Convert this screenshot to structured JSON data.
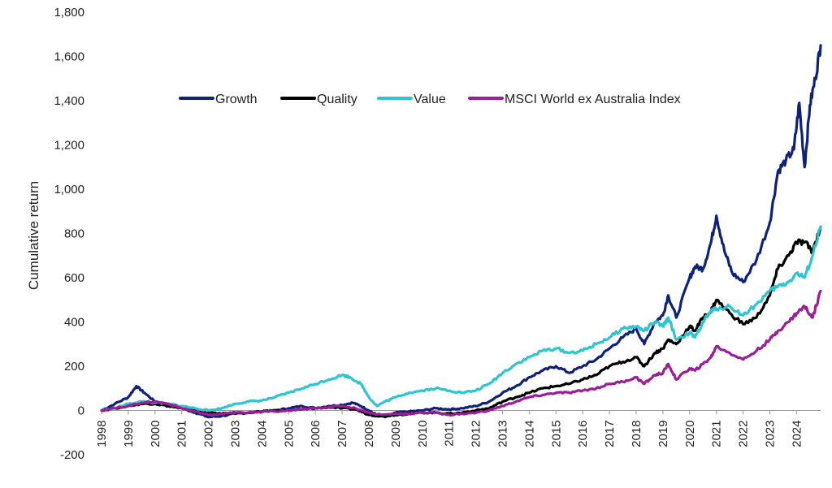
{
  "chart_data": {
    "type": "line",
    "title": "",
    "xlabel": "",
    "ylabel": "Cumulative return",
    "xlim": [
      1998,
      2024.9
    ],
    "ylim": [
      -200,
      1800
    ],
    "y_ticks": [
      -200,
      0,
      200,
      400,
      600,
      800,
      1000,
      1200,
      1400,
      1600,
      1800
    ],
    "y_tick_labels": [
      "-200",
      "0",
      "200",
      "400",
      "600",
      "800",
      "1,000",
      "1,200",
      "1,400",
      "1,600",
      "1,800"
    ],
    "x_ticks": [
      "1998",
      "1999",
      "2000",
      "2001",
      "2002",
      "2003",
      "2004",
      "2005",
      "2006",
      "2007",
      "2008",
      "2009",
      "2010",
      "2011",
      "2012",
      "2013",
      "2014",
      "2015",
      "2016",
      "2017",
      "2018",
      "2019",
      "2020",
      "2021",
      "2022",
      "2023",
      "2024"
    ],
    "grid": false,
    "legend_position": "top-center",
    "series": [
      {
        "name": "Growth",
        "color": "#0f2278",
        "x": [
          1998,
          1998.5,
          1999,
          1999.3,
          1999.6,
          2000,
          2000.5,
          2001,
          2001.5,
          2002,
          2002.5,
          2003,
          2003.5,
          2004,
          2004.5,
          2005,
          2005.5,
          2006,
          2006.5,
          2007,
          2007.4,
          2007.7,
          2008,
          2008.3,
          2008.6,
          2009,
          2009.5,
          2010,
          2010.5,
          2011,
          2011.5,
          2012,
          2012.5,
          2013,
          2013.5,
          2014,
          2014.5,
          2015,
          2015.5,
          2016,
          2016.5,
          2017,
          2017.5,
          2018,
          2018.3,
          2018.7,
          2019,
          2019.2,
          2019.5,
          2020,
          2020.2,
          2020.5,
          2020.8,
          2021,
          2021.3,
          2021.6,
          2022,
          2022.5,
          2023,
          2023.3,
          2023.6,
          2023.9,
          2024.1,
          2024.3,
          2024.5,
          2024.7,
          2024.9
        ],
        "values": [
          0,
          30,
          60,
          110,
          80,
          40,
          20,
          10,
          -10,
          -30,
          -25,
          -15,
          -10,
          -5,
          0,
          10,
          20,
          10,
          20,
          25,
          35,
          20,
          0,
          -20,
          -30,
          -10,
          -5,
          0,
          10,
          5,
          10,
          20,
          40,
          80,
          110,
          150,
          180,
          200,
          170,
          200,
          230,
          280,
          330,
          370,
          300,
          400,
          430,
          520,
          420,
          600,
          650,
          640,
          760,
          880,
          720,
          620,
          580,
          680,
          850,
          1080,
          1130,
          1180,
          1390,
          1100,
          1380,
          1500,
          1650
        ]
      },
      {
        "name": "Quality",
        "color": "#000000",
        "x": [
          1998,
          1998.5,
          1999,
          1999.5,
          2000,
          2000.5,
          2001,
          2001.5,
          2002,
          2002.5,
          2003,
          2003.5,
          2004,
          2004.5,
          2005,
          2005.5,
          2006,
          2006.5,
          2007,
          2007.5,
          2008,
          2008.5,
          2009,
          2009.5,
          2010,
          2010.5,
          2011,
          2011.5,
          2012,
          2012.5,
          2013,
          2013.5,
          2014,
          2014.5,
          2015,
          2015.5,
          2016,
          2016.5,
          2017,
          2017.5,
          2018,
          2018.3,
          2018.7,
          2019,
          2019.2,
          2019.5,
          2020,
          2020.2,
          2020.5,
          2020.8,
          2021,
          2021.5,
          2022,
          2022.5,
          2023,
          2023.3,
          2023.7,
          2024,
          2024.3,
          2024.6,
          2024.9
        ],
        "values": [
          0,
          10,
          20,
          30,
          30,
          20,
          10,
          0,
          -10,
          -15,
          -10,
          -10,
          -5,
          0,
          0,
          5,
          10,
          15,
          10,
          5,
          -20,
          -25,
          -20,
          -15,
          -10,
          -10,
          -15,
          -10,
          0,
          10,
          40,
          60,
          80,
          100,
          110,
          120,
          140,
          160,
          200,
          220,
          240,
          200,
          260,
          280,
          320,
          300,
          380,
          360,
          420,
          450,
          500,
          440,
          390,
          420,
          520,
          640,
          700,
          760,
          760,
          720,
          830
        ]
      },
      {
        "name": "Value",
        "color": "#2ec4d0",
        "x": [
          1998,
          1998.5,
          1999,
          1999.5,
          2000,
          2000.5,
          2001,
          2001.5,
          2002,
          2002.5,
          2003,
          2003.5,
          2004,
          2004.5,
          2005,
          2005.5,
          2006,
          2006.5,
          2007,
          2007.3,
          2007.7,
          2008,
          2008.3,
          2008.6,
          2009,
          2009.5,
          2010,
          2010.5,
          2011,
          2011.5,
          2012,
          2012.5,
          2013,
          2013.5,
          2014,
          2014.5,
          2015,
          2015.5,
          2016,
          2016.5,
          2017,
          2017.5,
          2018,
          2018.3,
          2018.7,
          2019,
          2019.2,
          2019.5,
          2020,
          2020.2,
          2020.5,
          2020.8,
          2021,
          2021.5,
          2022,
          2022.5,
          2023,
          2023.3,
          2023.7,
          2024,
          2024.3,
          2024.6,
          2024.9
        ],
        "values": [
          0,
          10,
          30,
          40,
          35,
          30,
          20,
          10,
          0,
          10,
          30,
          40,
          45,
          60,
          80,
          100,
          120,
          140,
          160,
          150,
          120,
          60,
          20,
          40,
          60,
          80,
          90,
          100,
          90,
          80,
          90,
          120,
          170,
          210,
          240,
          270,
          280,
          260,
          270,
          300,
          330,
          370,
          380,
          360,
          400,
          380,
          420,
          320,
          350,
          330,
          400,
          450,
          460,
          470,
          430,
          480,
          540,
          560,
          580,
          620,
          600,
          700,
          830
        ]
      },
      {
        "name": "MSCI World ex Australia Index",
        "color": "#9a1f96",
        "x": [
          1998,
          1998.5,
          1999,
          1999.5,
          2000,
          2000.5,
          2001,
          2001.5,
          2002,
          2002.5,
          2003,
          2003.5,
          2004,
          2004.5,
          2005,
          2005.5,
          2006,
          2006.5,
          2007,
          2007.5,
          2008,
          2008.5,
          2009,
          2009.5,
          2010,
          2010.5,
          2011,
          2011.5,
          2012,
          2012.5,
          2013,
          2013.5,
          2014,
          2014.5,
          2015,
          2015.5,
          2016,
          2016.5,
          2017,
          2017.5,
          2018,
          2018.3,
          2018.7,
          2019,
          2019.2,
          2019.5,
          2020,
          2020.2,
          2020.5,
          2020.8,
          2021,
          2021.5,
          2022,
          2022.5,
          2023,
          2023.3,
          2023.7,
          2024,
          2024.3,
          2024.6,
          2024.9
        ],
        "values": [
          0,
          10,
          20,
          35,
          40,
          30,
          10,
          -5,
          -20,
          -15,
          -10,
          -10,
          -5,
          -5,
          0,
          5,
          10,
          15,
          20,
          10,
          -10,
          -20,
          -15,
          -15,
          -10,
          -10,
          -20,
          -15,
          -10,
          0,
          20,
          40,
          60,
          70,
          80,
          80,
          90,
          100,
          120,
          130,
          150,
          120,
          160,
          170,
          210,
          140,
          190,
          180,
          210,
          240,
          290,
          260,
          230,
          270,
          320,
          360,
          400,
          440,
          470,
          420,
          540
        ]
      }
    ]
  }
}
